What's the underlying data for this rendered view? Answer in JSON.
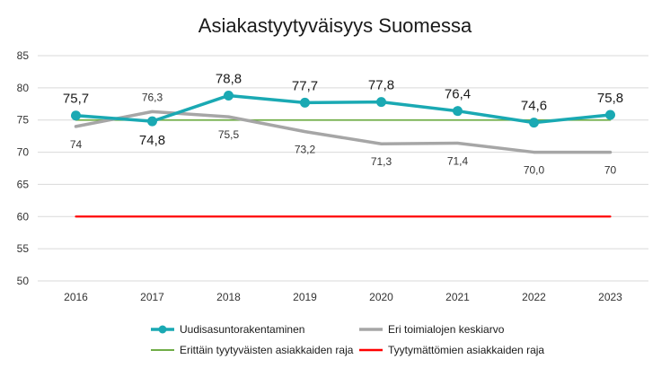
{
  "chart_data": {
    "type": "line",
    "title": "Asiakastyytyväisyys Suomessa",
    "categories": [
      "2016",
      "2017",
      "2018",
      "2019",
      "2020",
      "2021",
      "2022",
      "2023"
    ],
    "ylim": [
      50,
      85
    ],
    "yticks": [
      50,
      55,
      60,
      65,
      70,
      75,
      80,
      85
    ],
    "grid": true,
    "legend": "bottom",
    "series": [
      {
        "name": "Uudisasuntorakentaminen",
        "values": [
          75.7,
          74.8,
          78.8,
          77.7,
          77.8,
          76.4,
          74.6,
          75.8
        ],
        "labels": [
          "75,7",
          "74,8",
          "78,8",
          "77,7",
          "77,8",
          "76,4",
          "74,6",
          "75,8"
        ],
        "color": "#1aa9b3"
      },
      {
        "name": "Eri toimialojen keskiarvo",
        "values": [
          74,
          76.3,
          75.5,
          73.2,
          71.3,
          71.4,
          70.0,
          70
        ],
        "labels": [
          "74",
          "76,3",
          "75,5",
          "73,2",
          "71,3",
          "71,4",
          "70,0",
          "70"
        ],
        "color": "#a6a6a6"
      },
      {
        "name": "Erittäin tyytyväisten asiakkaiden raja",
        "values": [
          75,
          75,
          75,
          75,
          75,
          75,
          75,
          75
        ],
        "color": "#70ad47"
      },
      {
        "name": "Tyytymättömien asiakkaiden raja",
        "values": [
          60,
          60,
          60,
          60,
          60,
          60,
          60,
          60
        ],
        "color": "#ff0000"
      }
    ]
  }
}
